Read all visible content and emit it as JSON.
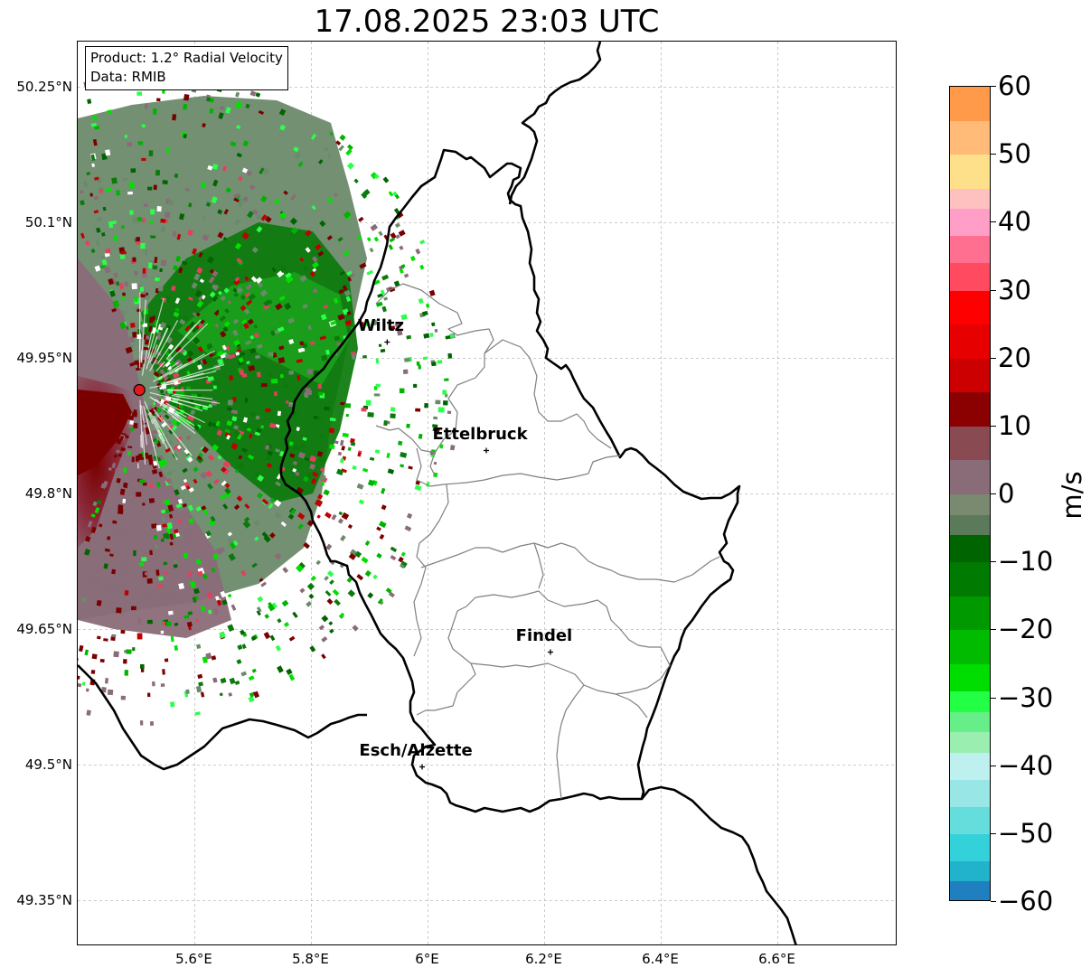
{
  "title": "17.08.2025 23:03 UTC",
  "info": {
    "product": "Product: 1.2° Radial Velocity",
    "data_source": "Data: RMIB"
  },
  "axes": {
    "lat_ticks": [
      "50.25°N",
      "50.1°N",
      "49.95°N",
      "49.8°N",
      "49.65°N",
      "49.5°N",
      "49.35°N"
    ],
    "lon_ticks": [
      "5.6°E",
      "5.8°E",
      "6°E",
      "6.2°E",
      "6.4°E",
      "6.6°E"
    ],
    "lat_values": [
      50.25,
      50.1,
      49.95,
      49.8,
      49.65,
      49.5,
      49.35
    ],
    "lon_values": [
      5.6,
      5.8,
      6.0,
      6.2,
      6.4,
      6.6
    ],
    "grid": true,
    "grid_style": "dashed"
  },
  "cities": [
    {
      "name": "Wiltz",
      "lon": 5.93,
      "lat": 49.968
    },
    {
      "name": "Ettelbruck",
      "lon": 6.1,
      "lat": 49.848
    },
    {
      "name": "Findel",
      "lon": 6.21,
      "lat": 49.625
    },
    {
      "name": "Esch/Alzette",
      "lon": 5.99,
      "lat": 49.498
    }
  ],
  "radar_site": {
    "lon": 5.505,
    "lat": 49.915,
    "color": "#e31a1c"
  },
  "colorbar": {
    "unit": "m/s",
    "min": -60,
    "max": 60,
    "ticks": [
      "60",
      "50",
      "40",
      "30",
      "20",
      "10",
      "0",
      "−10",
      "−20",
      "−30",
      "−40",
      "−50",
      "−60"
    ],
    "tick_values": [
      60,
      50,
      40,
      30,
      20,
      10,
      0,
      -10,
      -20,
      -30,
      -40,
      -50,
      -60
    ]
  },
  "colors": {
    "inbound_strong": "#00cc00",
    "inbound_dark": "#006400",
    "near_zero_green": "#6b8a6b",
    "near_zero_mauve": "#8a6b78",
    "outbound_dark": "#7a0000",
    "outbound_red": "#e00000",
    "border": "#000000",
    "canton_border": "#808080"
  }
}
